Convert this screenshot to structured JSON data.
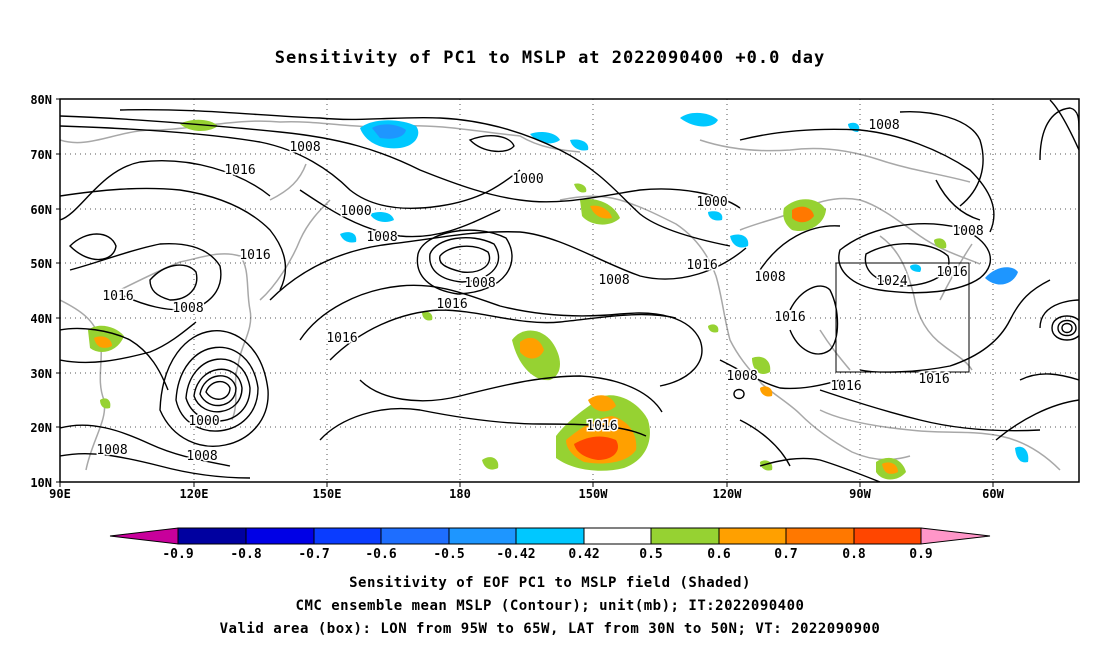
{
  "title": "Sensitivity of PC1 to MSLP at 2022090400 +0.0 day",
  "lat_ticks": [
    "80N",
    "70N",
    "60N",
    "50N",
    "40N",
    "30N",
    "20N",
    "10N"
  ],
  "lon_ticks": [
    "90E",
    "120E",
    "150E",
    "180",
    "150W",
    "120W",
    "90W",
    "60W"
  ],
  "contour_labels": [
    "1008",
    "1016",
    "1000",
    "1000",
    "1008",
    "1016",
    "1008",
    "1016",
    "1008",
    "1000",
    "1008",
    "1016",
    "1016",
    "1008",
    "1016",
    "1024",
    "1016",
    "1008",
    "1016",
    "1008",
    "1016",
    "1016",
    "1000",
    "1008",
    "1008",
    "1016",
    "1008"
  ],
  "colorbar": {
    "labels": [
      "-0.9",
      "-0.8",
      "-0.7",
      "-0.6",
      "-0.5",
      "-0.42",
      "0.42",
      "0.5",
      "0.6",
      "0.7",
      "0.8",
      "0.9"
    ],
    "colors": [
      "#c8009b",
      "#0000a0",
      "#0000e6",
      "#0a3cff",
      "#1e6eff",
      "#1e96ff",
      "#00c8ff",
      "#ffffff",
      "#96d232",
      "#ffa000",
      "#ff7800",
      "#ff4600",
      "#ff0000",
      "#ff96c8"
    ]
  },
  "valid_box": {
    "lon_from": "95W",
    "lon_to": "65W",
    "lat_from": "30N",
    "lat_to": "50N"
  },
  "captions": [
    "Sensitivity of EOF PC1 to MSLP field (Shaded)",
    "CMC ensemble mean MSLP (Contour); unit(mb); IT:2022090400",
    "Valid area (box): LON from 95W to 65W, LAT from 30N to 50N; VT: 2022090900"
  ]
}
